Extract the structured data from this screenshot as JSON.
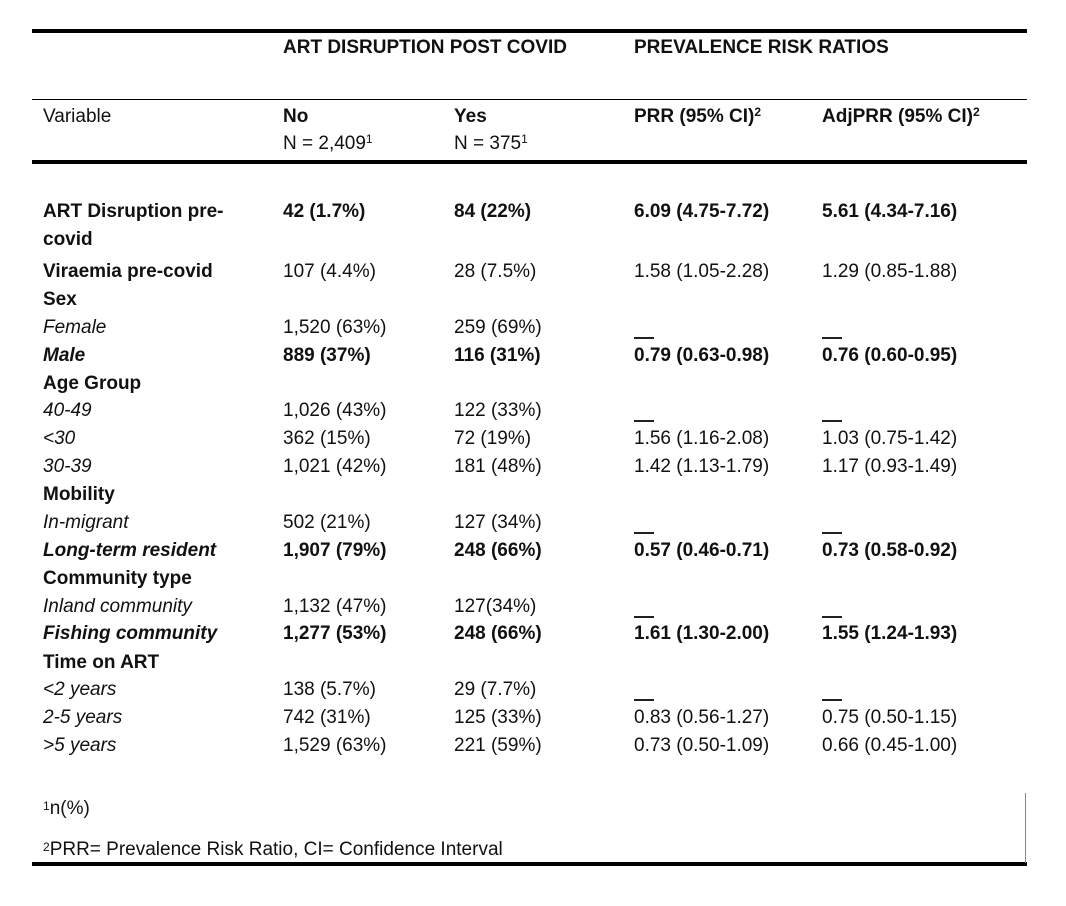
{
  "header": {
    "group_art": "ART DISRUPTION POST COVID",
    "group_prr": "PREVALENCE RISK RATIOS",
    "col_variable": "Variable",
    "col_no": "No",
    "col_no_n": "N = 2,409",
    "col_no_n_sup": "1",
    "col_yes": "Yes",
    "col_yes_n": "N = 375",
    "col_yes_n_sup": "1",
    "col_prr": "PRR (95% CI)",
    "col_prr_sup": "2",
    "col_adj": "AdjPRR (95% CI)",
    "col_adj_sup": "2"
  },
  "rows": [
    {
      "label": "ART Disruption pre-",
      "label2": "covid",
      "no": "42 (1.7%)",
      "yes": "84 (22%)",
      "prr": "6.09 (4.75-7.72)",
      "adj": "5.61 (4.34-7.16)"
    },
    {
      "label": "Viraemia pre-covid",
      "no": "107 (4.4%)",
      "yes": "28 (7.5%)",
      "prr": "1.58 (1.05-2.28)",
      "adj": "1.29 (0.85-1.88)"
    },
    {
      "label": "Sex"
    },
    {
      "label": "Female",
      "no": "1,520 (63%)",
      "yes": "259 (69%)",
      "prr": "—",
      "adj": "—"
    },
    {
      "label": "Male",
      "no": "889 (37%)",
      "yes": "116 (31%)",
      "prr": "0.79 (0.63-0.98)",
      "adj": "0.76 (0.60-0.95)"
    },
    {
      "label": "Age Group"
    },
    {
      "label": "40-49",
      "no": "1,026 (43%)",
      "yes": "122 (33%)",
      "prr": "—",
      "adj": "—"
    },
    {
      "label": "<30",
      "no": "362 (15%)",
      "yes": "72 (19%)",
      "prr": "1.56 (1.16-2.08)",
      "adj": "1.03 (0.75-1.42)"
    },
    {
      "label": "30-39",
      "no": "1,021 (42%)",
      "yes": "181 (48%)",
      "prr": "1.42 (1.13-1.79)",
      "adj": "1.17 (0.93-1.49)"
    },
    {
      "label": "Mobility"
    },
    {
      "label": "In-migrant",
      "no": "502 (21%)",
      "yes": "127 (34%)",
      "prr": "—",
      "adj": "—"
    },
    {
      "label": "Long-term resident",
      "no": "1,907 (79%)",
      "yes": "248 (66%)",
      "prr": "0.57 (0.46-0.71)",
      "adj": "0.73 (0.58-0.92)"
    },
    {
      "label": "Community type"
    },
    {
      "label": "Inland community",
      "no": "1,132 (47%)",
      "yes": "127(34%)",
      "prr": "—",
      "adj": "—"
    },
    {
      "label": "Fishing community",
      "no": "1,277 (53%)",
      "yes": "248 (66%)",
      "prr": "1.61 (1.30-2.00)",
      "adj": "1.55 (1.24-1.93)"
    },
    {
      "label": "Time on ART"
    },
    {
      "label": "<2 years",
      "no": "138 (5.7%)",
      "yes": "29 (7.7%)",
      "prr": "—",
      "adj": "—"
    },
    {
      "label": "2-5 years",
      "no": "742 (31%)",
      "yes": "125 (33%)",
      "prr": "0.83 (0.56-1.27)",
      "adj": "0.75 (0.50-1.15)"
    },
    {
      "label": ">5 years",
      "no": "1,529 (63%)",
      "yes": "221 (59%)",
      "prr": "0.73 (0.50-1.09)",
      "adj": "0.66 (0.45-1.00)"
    }
  ],
  "footnotes": {
    "note1_sup": "1",
    "note1": "n(%)",
    "note2_sup": "2",
    "note2": "PRR= Prevalence Risk Ratio, CI= Confidence Interval"
  }
}
